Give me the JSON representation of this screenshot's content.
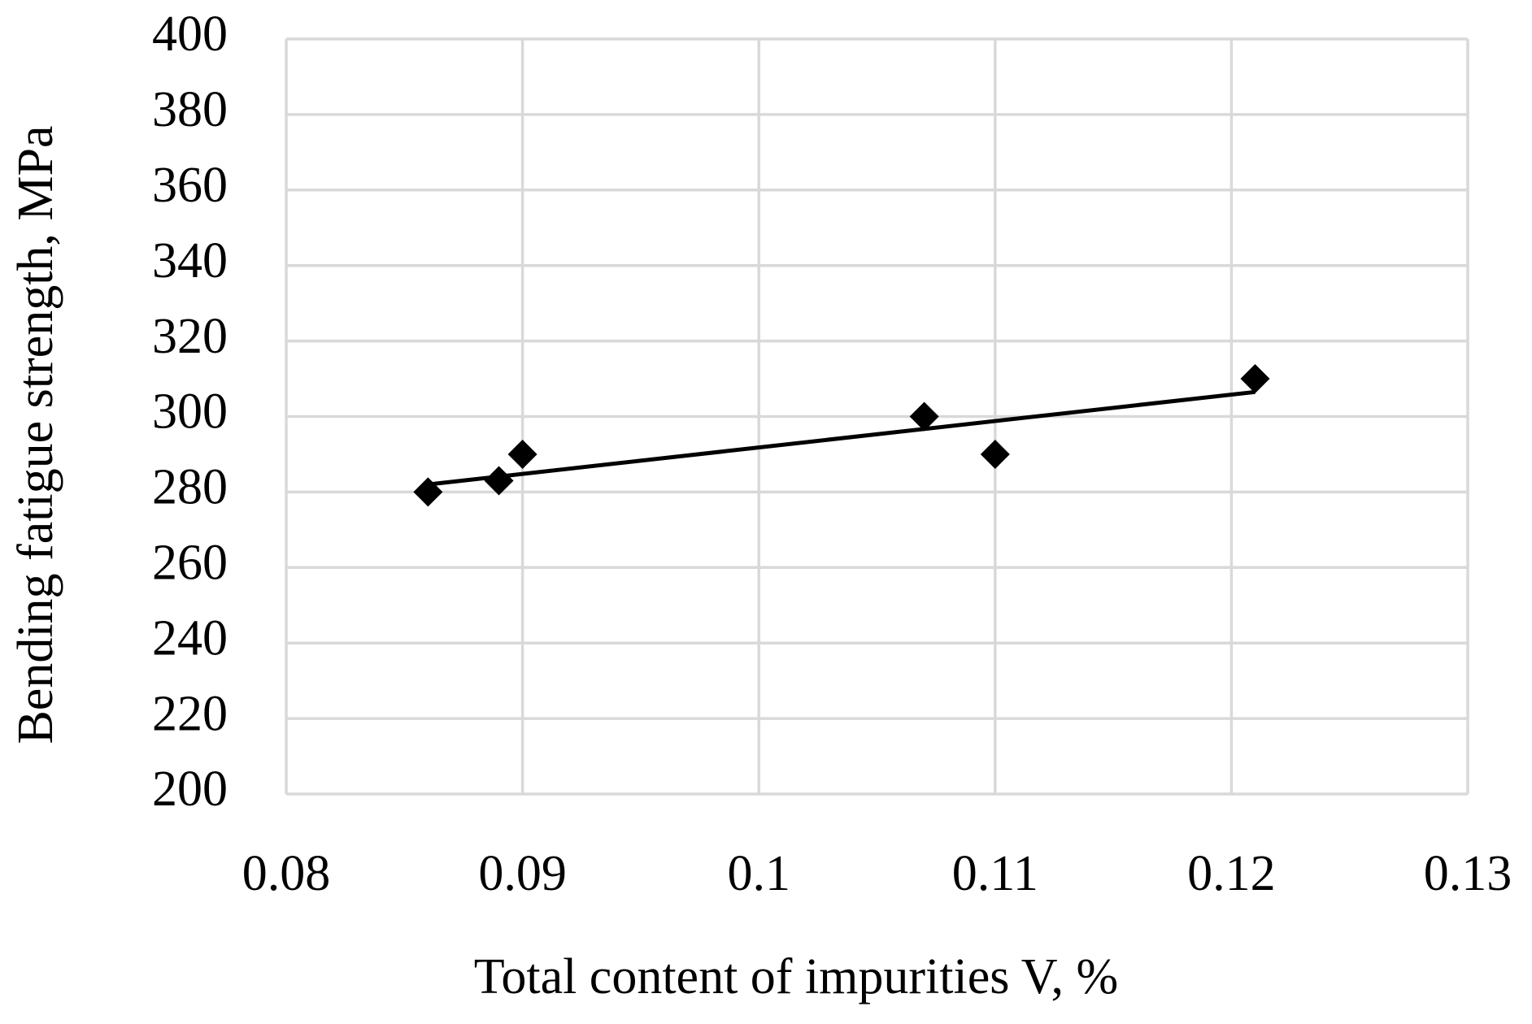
{
  "chart_data": {
    "type": "scatter",
    "x_label": "Total content of impurities V, %",
    "y_label": "Bending fatigue strength, MPa",
    "x": [
      0.086,
      0.089,
      0.09,
      0.107,
      0.11,
      0.121
    ],
    "values": [
      280,
      283,
      290,
      300,
      290,
      310
    ],
    "color": "#000000",
    "marker": "diamond",
    "trendline": {
      "x": [
        0.086,
        0.121
      ],
      "values": [
        282,
        306.5
      ],
      "color": "#000000"
    },
    "xlim": [
      0.08,
      0.13
    ],
    "xticks": [
      0.08,
      0.09,
      0.1,
      0.11,
      0.12,
      0.13
    ],
    "ylim": [
      200,
      400
    ],
    "yticks": [
      200,
      220,
      240,
      260,
      280,
      300,
      320,
      340,
      360,
      380,
      400
    ],
    "grid": true
  }
}
